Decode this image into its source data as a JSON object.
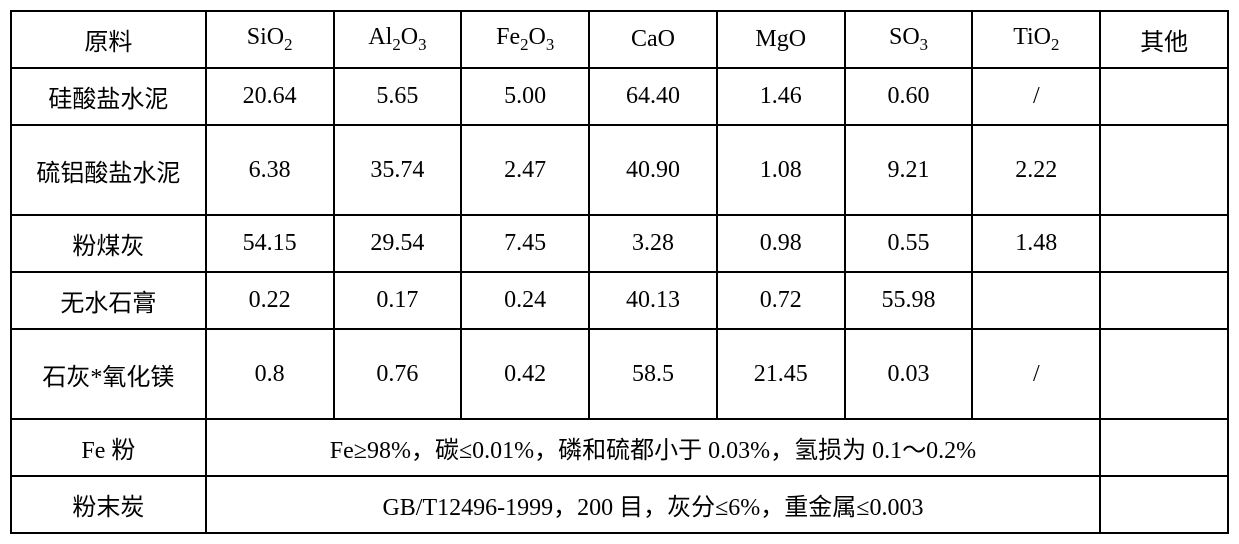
{
  "table": {
    "type": "table",
    "border_color": "#000000",
    "background_color": "#ffffff",
    "text_color": "#000000",
    "font_family": "SimSun",
    "font_size_pt": 18,
    "headers": {
      "material": "原料",
      "sio2": "SiO₂",
      "al2o3": "Al₂O₃",
      "fe2o3": "Fe₂O₃",
      "cao": "CaO",
      "mgo": "MgO",
      "so3": "SO₃",
      "tio2": "TiO₂",
      "other": "其他"
    },
    "rows": [
      {
        "label": "硅酸盐水泥",
        "sio2": "20.64",
        "al2o3": "5.65",
        "fe2o3": "5.00",
        "cao": "64.40",
        "mgo": "1.46",
        "so3": "0.60",
        "tio2": "/",
        "other": ""
      },
      {
        "label": "硫铝酸盐水泥",
        "sio2": "6.38",
        "al2o3": "35.74",
        "fe2o3": "2.47",
        "cao": "40.90",
        "mgo": "1.08",
        "so3": "9.21",
        "tio2": "2.22",
        "other": ""
      },
      {
        "label": "粉煤灰",
        "sio2": "54.15",
        "al2o3": "29.54",
        "fe2o3": "7.45",
        "cao": "3.28",
        "mgo": "0.98",
        "so3": "0.55",
        "tio2": "1.48",
        "other": ""
      },
      {
        "label": "无水石膏",
        "sio2": "0.22",
        "al2o3": "0.17",
        "fe2o3": "0.24",
        "cao": "40.13",
        "mgo": "0.72",
        "so3": "55.98",
        "tio2": "",
        "other": ""
      },
      {
        "label": "石灰*氧化镁",
        "sio2": "0.8",
        "al2o3": "0.76",
        "fe2o3": "0.42",
        "cao": "58.5",
        "mgo": "21.45",
        "so3": "0.03",
        "tio2": "/",
        "other": ""
      }
    ],
    "spanning_rows": [
      {
        "label": "Fe 粉",
        "text": "Fe≥98%，碳≤0.01%，磷和硫都小于 0.03%，氢损为 0.1～0.2%",
        "other": ""
      },
      {
        "label": "粉末炭",
        "text": "GB/T12496-1999，200 目，灰分≤6%，重金属≤0.003",
        "other": ""
      }
    ]
  }
}
